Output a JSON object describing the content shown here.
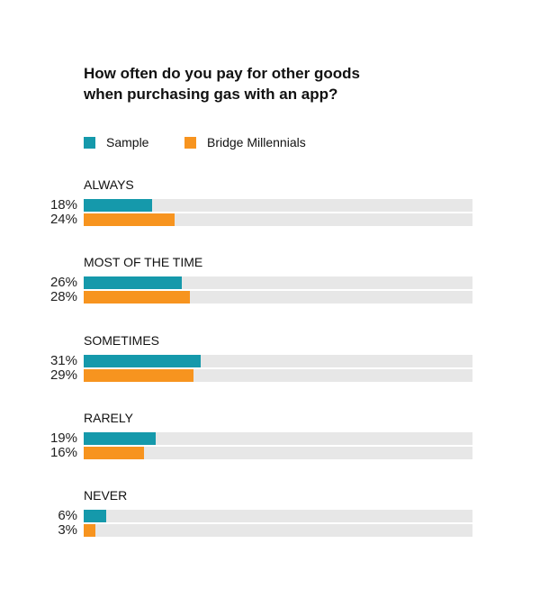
{
  "chart_data": {
    "type": "bar",
    "title": "How often do you pay for other goods when purchasing gas with an app?",
    "title_lines": [
      "How often do you pay for other goods",
      "when purchasing gas with an app?"
    ],
    "categories": [
      "ALWAYS",
      "MOST OF THE TIME",
      "SOMETIMES",
      "RARELY",
      "NEVER"
    ],
    "series": [
      {
        "name": "Sample",
        "color": "#1599ab",
        "values": [
          18,
          26,
          31,
          19,
          6
        ]
      },
      {
        "name": "Bridge Millennials",
        "color": "#f7941f",
        "values": [
          24,
          28,
          29,
          16,
          3
        ]
      }
    ],
    "xlim": [
      0,
      100
    ],
    "value_suffix": "%",
    "legend": "top-left",
    "track_color": "#e7e7e7"
  }
}
